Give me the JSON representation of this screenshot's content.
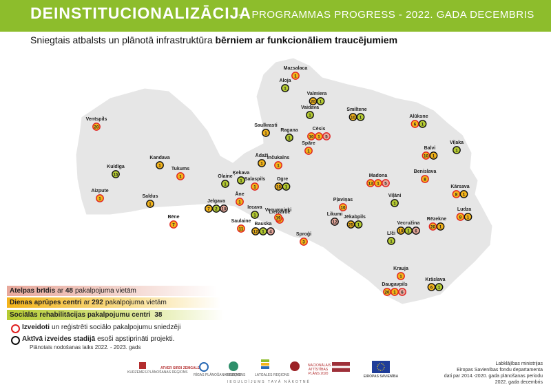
{
  "header": {
    "title": "DEINSTITUCIONALIZĀCIJA",
    "separator": "-",
    "subtitle": "PROGRAMMAS PROGRESS  -  2022. GADA  DECEMBRIS"
  },
  "subtitle": {
    "plain": "Sniegtais atbalsts un plānotā infrastruktūra ",
    "bold": "bērniem ar funkcionāliem traucējumiem"
  },
  "colors": {
    "header_green": "#8dbd2c",
    "map_fill": "#e6e6e6",
    "atelpas_pink": "#e8a89b",
    "dienas_orange": "#f4b41a",
    "rehab_green": "#b5cb32",
    "established_ring": "#e02020",
    "active_ring": "#111111"
  },
  "legend": {
    "atelpas": {
      "label": "Atelpas brīdis",
      "rest": " ar ",
      "count": "48",
      "tail": " pakalpojuma vietām"
    },
    "dienas": {
      "label": "Dienas aprūpes centri",
      "rest": " ar ",
      "count": "292",
      "tail": " pakalpojuma vietām"
    },
    "rehab": {
      "label": "Sociālās rehabilitācijas pakalpojumu centri",
      "count": "38"
    },
    "izveidoti": {
      "label": "Izveidoti",
      "tail": " un reģistrēti sociālo pakalpojumu sniedzēji"
    },
    "aktiva": {
      "label": "Aktīvā izveides stadijā",
      "tail": " esoši apstiprināti projekti."
    },
    "note": "Plānotais nodošanas laiks 2022. - 2023. gads"
  },
  "cities": [
    {
      "name": "Mazsalaca",
      "markers": [
        {
          "v": "1",
          "t": "o",
          "r": "r"
        }
      ]
    },
    {
      "name": "Aloja",
      "markers": [
        {
          "v": "1",
          "t": "g",
          "r": "k"
        }
      ]
    },
    {
      "name": "Valmiera",
      "markers": [
        {
          "v": "20",
          "t": "o",
          "r": "k"
        },
        {
          "v": "1",
          "t": "g",
          "r": "k"
        }
      ]
    },
    {
      "name": "Vaidava",
      "markers": [
        {
          "v": "1",
          "t": "g",
          "r": "k"
        }
      ]
    },
    {
      "name": "Smiltene",
      "markers": [
        {
          "v": "10",
          "t": "o",
          "r": "k"
        },
        {
          "v": "1",
          "t": "g",
          "r": "k"
        }
      ]
    },
    {
      "name": "Alūksne",
      "markers": [
        {
          "v": "6",
          "t": "o",
          "r": "r"
        },
        {
          "v": "1",
          "t": "g",
          "r": "k"
        }
      ]
    },
    {
      "name": "Ventspils",
      "markers": [
        {
          "v": "20",
          "t": "o",
          "r": "r"
        }
      ]
    },
    {
      "name": "Saulkrasti",
      "markers": [
        {
          "v": "1",
          "t": "o",
          "r": "k"
        }
      ]
    },
    {
      "name": "Ragana",
      "markers": [
        {
          "v": "1",
          "t": "g",
          "r": "k"
        }
      ]
    },
    {
      "name": "Cēsis",
      "markers": [
        {
          "v": "10",
          "t": "o",
          "r": "r"
        },
        {
          "v": "1",
          "t": "o",
          "r": "r"
        },
        {
          "v": "5",
          "t": "p",
          "r": "r"
        }
      ]
    },
    {
      "name": "Spāre",
      "markers": [
        {
          "v": "1",
          "t": "o",
          "r": "r"
        }
      ]
    },
    {
      "name": "Viļaka",
      "markers": [
        {
          "v": "1",
          "t": "g",
          "r": "k"
        }
      ]
    },
    {
      "name": "Balvi",
      "markers": [
        {
          "v": "10",
          "t": "o",
          "r": "r"
        },
        {
          "v": "1",
          "t": "o",
          "r": "k"
        }
      ]
    },
    {
      "name": "Kandava",
      "markers": [
        {
          "v": "1",
          "t": "o",
          "r": "k"
        }
      ]
    },
    {
      "name": "Ādaži",
      "markers": [
        {
          "v": "1",
          "t": "o",
          "r": "k"
        }
      ]
    },
    {
      "name": "Inčukalns",
      "markers": [
        {
          "v": "1",
          "t": "o",
          "r": "r"
        }
      ]
    },
    {
      "name": "Kuldīga",
      "markers": [
        {
          "v": "15",
          "t": "g",
          "r": "k"
        }
      ]
    },
    {
      "name": "Tukums",
      "markers": [
        {
          "v": "1",
          "t": "o",
          "r": "r"
        }
      ]
    },
    {
      "name": "Ķekava",
      "markers": [
        {
          "v": "1",
          "t": "g",
          "r": "k"
        }
      ]
    },
    {
      "name": "Olaine",
      "markers": [
        {
          "v": "1",
          "t": "g",
          "r": "k"
        }
      ]
    },
    {
      "name": "Salaspils",
      "markers": [
        {
          "v": "1",
          "t": "o",
          "r": "r"
        }
      ]
    },
    {
      "name": "Ogre",
      "markers": [
        {
          "v": "10",
          "t": "o",
          "r": "k"
        },
        {
          "v": "1",
          "t": "g",
          "r": "k"
        }
      ]
    },
    {
      "name": "Madona",
      "markers": [
        {
          "v": "13",
          "t": "o",
          "r": "r"
        },
        {
          "v": "1",
          "t": "o",
          "r": "r"
        },
        {
          "v": "5",
          "t": "p",
          "r": "r"
        }
      ]
    },
    {
      "name": "Benislava",
      "markers": [
        {
          "v": "8",
          "t": "o",
          "r": "r"
        }
      ]
    },
    {
      "name": "Kārsava",
      "markers": [
        {
          "v": "8",
          "t": "o",
          "r": "r"
        },
        {
          "v": "1",
          "t": "o",
          "r": "k"
        }
      ]
    },
    {
      "name": "Aizpute",
      "markers": [
        {
          "v": "1",
          "t": "o",
          "r": "r"
        }
      ]
    },
    {
      "name": "Saldus",
      "markers": [
        {
          "v": "1",
          "t": "o",
          "r": "k"
        }
      ]
    },
    {
      "name": "Āne",
      "markers": [
        {
          "v": "1",
          "t": "o",
          "r": "r"
        }
      ]
    },
    {
      "name": "Lielvārde",
      "markers": [
        {
          "v": "1",
          "t": "o",
          "r": "r"
        }
      ]
    },
    {
      "name": "Viļāni",
      "markers": [
        {
          "v": "1",
          "t": "g",
          "r": "k"
        }
      ]
    },
    {
      "name": "Ludza",
      "markers": [
        {
          "v": "8",
          "t": "o",
          "r": "r"
        },
        {
          "v": "1",
          "t": "o",
          "r": "k"
        }
      ]
    },
    {
      "name": "Jelgava",
      "markers": [
        {
          "v": "7",
          "t": "o",
          "r": "k"
        },
        {
          "v": "2",
          "t": "g",
          "r": "k"
        },
        {
          "v": "10",
          "t": "p",
          "r": "k"
        }
      ]
    },
    {
      "name": "Iecava",
      "markers": [
        {
          "v": "1",
          "t": "g",
          "r": "k"
        }
      ]
    },
    {
      "name": "Pļaviņas",
      "markers": [
        {
          "v": "10",
          "t": "o",
          "r": "r"
        }
      ]
    },
    {
      "name": "Vecumnieki",
      "markers": [
        {
          "v": "19",
          "t": "o",
          "r": "r"
        }
      ]
    },
    {
      "name": "Bēne",
      "markers": [
        {
          "v": "7",
          "t": "o",
          "r": "r"
        }
      ]
    },
    {
      "name": "Likumi",
      "markers": [
        {
          "v": "12",
          "t": "p",
          "r": "k"
        }
      ]
    },
    {
      "name": "Jēkabpils",
      "markers": [
        {
          "v": "25",
          "t": "o",
          "r": "k"
        },
        {
          "v": "1",
          "t": "g",
          "r": "k"
        }
      ]
    },
    {
      "name": "Vecružina",
      "markers": [
        {
          "v": "10",
          "t": "o",
          "r": "k"
        },
        {
          "v": "1",
          "t": "g",
          "r": "k"
        },
        {
          "v": "6",
          "t": "p",
          "r": "k"
        }
      ]
    },
    {
      "name": "Rēzekne",
      "markers": [
        {
          "v": "20",
          "t": "o",
          "r": "r"
        },
        {
          "v": "1",
          "t": "o",
          "r": "k"
        }
      ]
    },
    {
      "name": "Saulaine",
      "markers": [
        {
          "v": "11",
          "t": "o",
          "r": "r"
        }
      ]
    },
    {
      "name": "Bauska",
      "markers": [
        {
          "v": "12",
          "t": "o",
          "r": "k"
        },
        {
          "v": "1",
          "t": "g",
          "r": "k"
        },
        {
          "v": "4",
          "t": "p",
          "r": "k"
        }
      ]
    },
    {
      "name": "Līči",
      "markers": [
        {
          "v": "1",
          "t": "g",
          "r": "k"
        }
      ]
    },
    {
      "name": "Sproģi",
      "markers": [
        {
          "v": "3",
          "t": "o",
          "r": "r"
        }
      ]
    },
    {
      "name": "Krauja",
      "markers": [
        {
          "v": "1",
          "t": "o",
          "r": "r"
        }
      ]
    },
    {
      "name": "Daugavpils",
      "markers": [
        {
          "v": "20",
          "t": "o",
          "r": "r"
        },
        {
          "v": "1",
          "t": "o",
          "r": "r"
        },
        {
          "v": "6",
          "t": "p",
          "r": "r"
        }
      ]
    },
    {
      "name": "Krāslava",
      "markers": [
        {
          "v": "6",
          "t": "o",
          "r": "k"
        },
        {
          "v": "1",
          "t": "g",
          "r": "k"
        }
      ]
    }
  ],
  "logos": [
    {
      "name": "KURZEMES PLĀNOŠANAS REĢIONS"
    },
    {
      "name": "ATVER SIRDI ZEMGALE"
    },
    {
      "name": "RĪGAS PLĀNOŠANAS REĢIONS"
    },
    {
      "name": "VIDZEME"
    },
    {
      "name": "LATGALES REĢIONS"
    },
    {
      "name": "NACIONĀLAIS ATTĪSTĪBAS PLĀNS 2020"
    },
    {
      "name": "EIROPAS SAVIENĪBA"
    }
  ],
  "investing": "IEGULDĪJUMS TAVĀ NĀKOTNĒ",
  "credits": [
    "Labklājības ministrijas",
    "Eiropas Savienības fondu departamenta",
    "dati par 2014.-2020. gada plānošanas periodu",
    "2022. gada decembris"
  ]
}
